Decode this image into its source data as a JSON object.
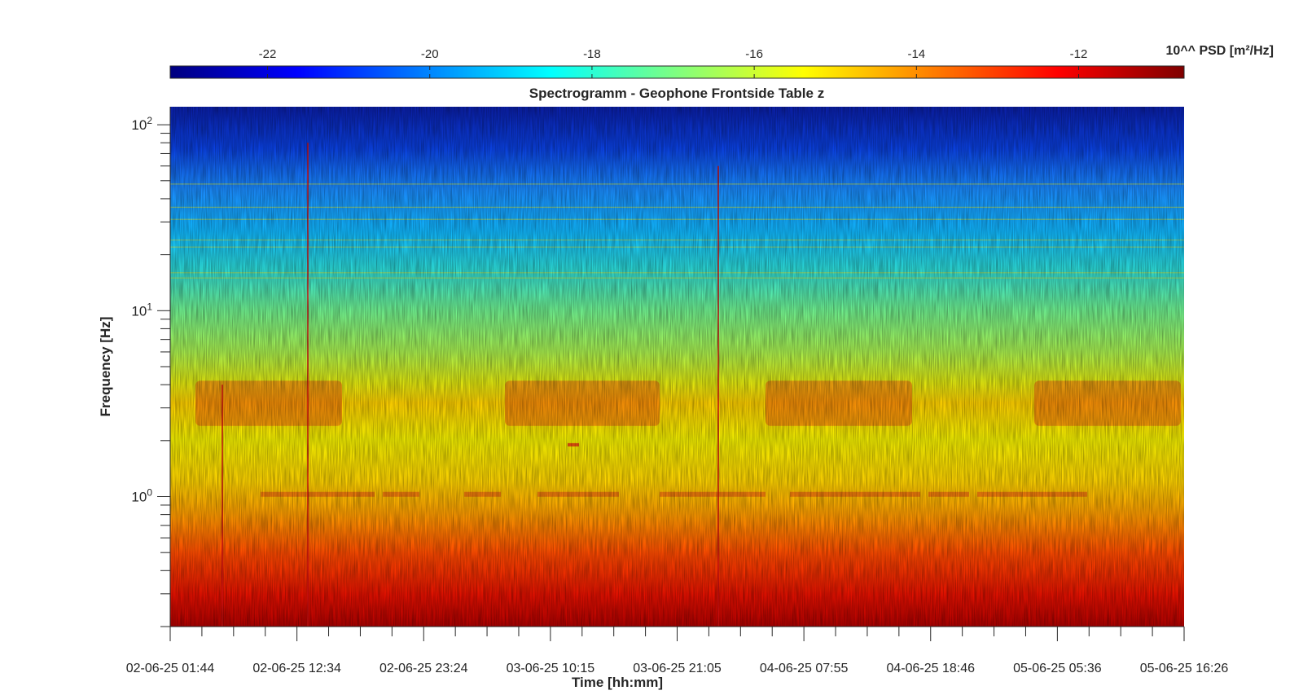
{
  "chart_data": {
    "type": "heatmap",
    "title": "Spectrogramm - Geophone Frontside Table z",
    "xlabel": "Time [hh:mm]",
    "ylabel": "Frequency [Hz]",
    "yscale": "log",
    "ylim": [
      0.2,
      125
    ],
    "y_ticks": [
      {
        "value": 1,
        "label": "10",
        "exp": "0"
      },
      {
        "value": 10,
        "label": "10",
        "exp": "1"
      },
      {
        "value": 100,
        "label": "10",
        "exp": "2"
      }
    ],
    "x_ticks": [
      "02-06-25 01:44",
      "02-06-25 12:34",
      "02-06-25 23:24",
      "03-06-25 10:15",
      "03-06-25 21:05",
      "04-06-25 07:55",
      "04-06-25 18:46",
      "05-06-25 05:36",
      "05-06-25 16:26"
    ],
    "colorbar": {
      "label": "10^^ PSD [m²/Hz]",
      "range": [
        -23.2,
        -10.7
      ],
      "ticks": [
        -22,
        -20,
        -18,
        -16,
        -14,
        -12
      ],
      "tick_labels": [
        "-22",
        "-20",
        "-18",
        "-16",
        "-14",
        "-12"
      ],
      "colormap": "jet"
    },
    "psd_profile_log10": [
      {
        "freq": 0.2,
        "value": -12.0
      },
      {
        "freq": 0.35,
        "value": -12.6
      },
      {
        "freq": 0.6,
        "value": -13.7
      },
      {
        "freq": 1.0,
        "value": -14.8
      },
      {
        "freq": 2.0,
        "value": -15.3
      },
      {
        "freq": 3.2,
        "value": -14.6
      },
      {
        "freq": 5.0,
        "value": -16.0
      },
      {
        "freq": 10,
        "value": -17.0
      },
      {
        "freq": 20,
        "value": -18.5
      },
      {
        "freq": 50,
        "value": -19.5
      },
      {
        "freq": 125,
        "value": -21.5
      }
    ],
    "colors": {
      "low": "#00007f",
      "mid": "#7fff7f",
      "high": "#7f0000"
    }
  }
}
